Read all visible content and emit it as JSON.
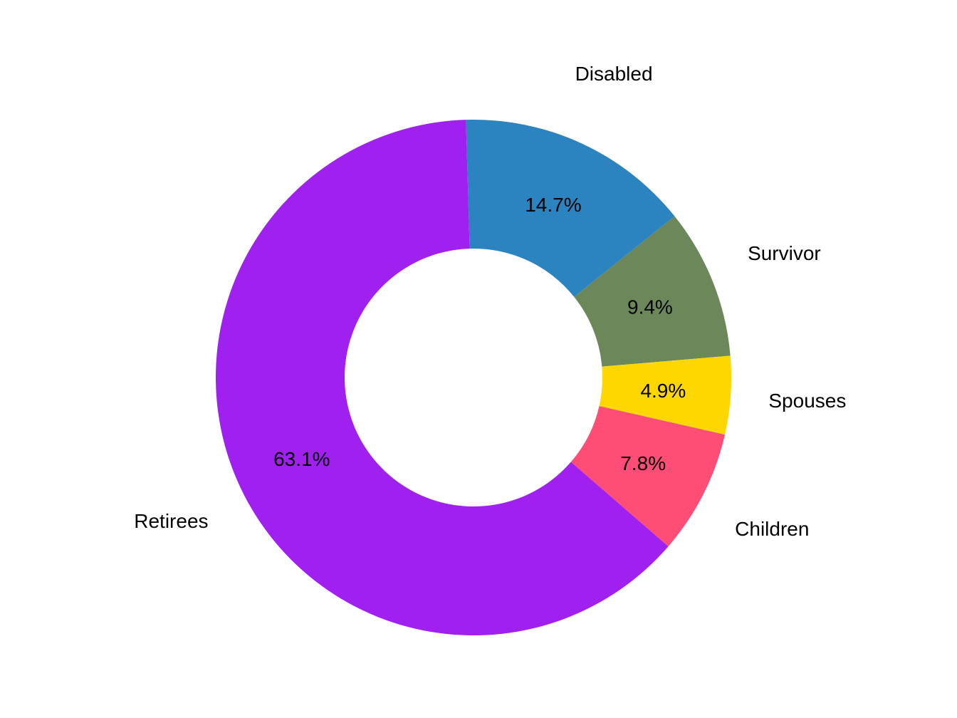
{
  "chart_data": {
    "type": "pie",
    "donut": true,
    "slices": [
      {
        "label": "Retirees",
        "value": 63.1,
        "value_label": "63.1%",
        "color": "#A020F0"
      },
      {
        "label": "Disabled",
        "value": 14.7,
        "value_label": "14.7%",
        "color": "#2B83C0"
      },
      {
        "label": "Survivor",
        "value": 9.4,
        "value_label": "9.4%",
        "color": "#6C885B"
      },
      {
        "label": "Spouses",
        "value": 4.9,
        "value_label": "4.9%",
        "color": "#FFD700"
      },
      {
        "label": "Children",
        "value": 7.8,
        "value_label": "7.8%",
        "color": "#FF4D75"
      }
    ]
  }
}
